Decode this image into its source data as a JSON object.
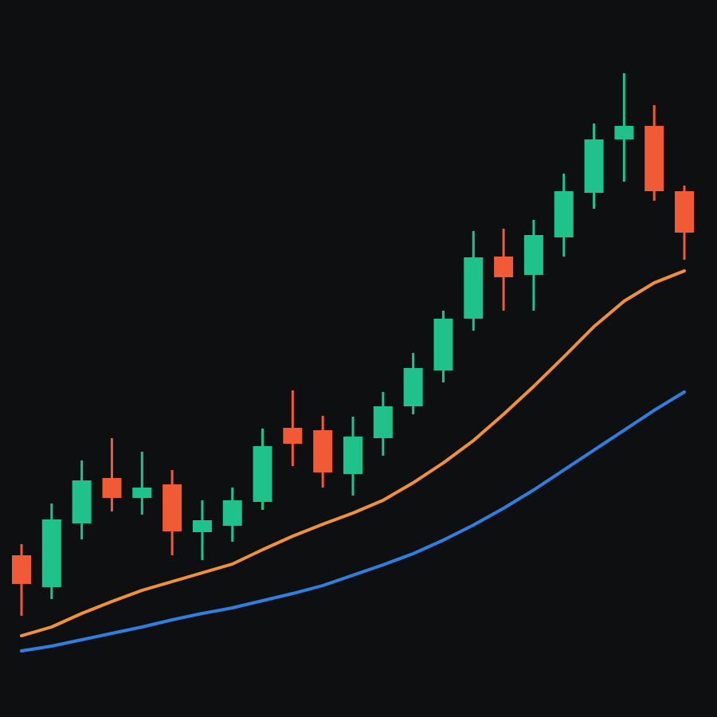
{
  "chart_data": {
    "type": "candlestick",
    "ylim": [
      0,
      900
    ],
    "up_color": "#1fc28a",
    "down_color": "#f05a35",
    "open": [
      203,
      163,
      243,
      300,
      275,
      292,
      232,
      240,
      270,
      363,
      360,
      305,
      350,
      390,
      435,
      500,
      578,
      555,
      602,
      658,
      725,
      742,
      660
    ],
    "high": [
      217,
      268,
      322,
      350,
      333,
      310,
      272,
      288,
      362,
      410,
      378,
      377,
      408,
      457,
      510,
      610,
      613,
      624,
      682,
      745,
      808,
      768,
      667
    ],
    "low": [
      127,
      148,
      223,
      258,
      254,
      203,
      197,
      220,
      260,
      315,
      288,
      278,
      328,
      380,
      420,
      485,
      510,
      510,
      578,
      638,
      672,
      648,
      574
    ],
    "close": [
      167,
      248,
      297,
      275,
      288,
      233,
      247,
      272,
      340,
      343,
      307,
      352,
      390,
      438,
      500,
      577,
      552,
      605,
      660,
      725,
      742,
      660,
      608
    ],
    "lines": [
      {
        "color": "#f0903a",
        "values": [
          102,
          113,
          130,
          145,
          159,
          170,
          181,
          192,
          210,
          227,
          242,
          256,
          272,
          294,
          319,
          347,
          380,
          415,
          452,
          490,
          522,
          545,
          560
        ]
      },
      {
        "color": "#2f7fe0",
        "values": [
          83,
          89,
          97,
          105,
          113,
          122,
          130,
          137,
          146,
          155,
          165,
          178,
          191,
          205,
          222,
          241,
          262,
          285,
          310,
          335,
          360,
          385,
          408
        ]
      }
    ]
  }
}
